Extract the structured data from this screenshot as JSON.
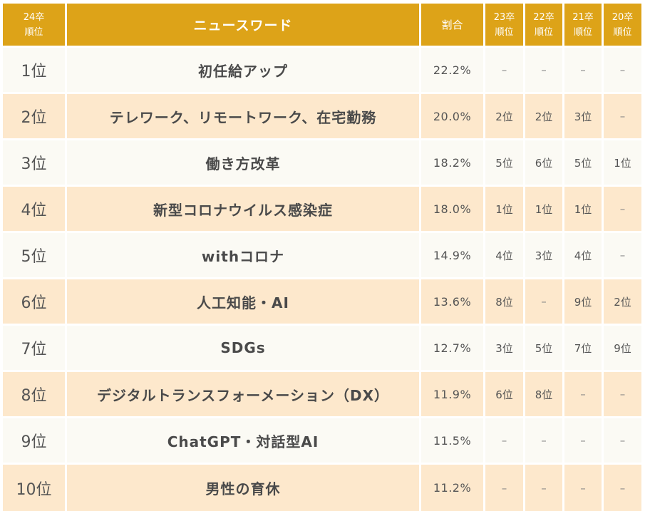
{
  "header": {
    "rank_label_line1": "24卒",
    "rank_label_line2": "順位",
    "word_label": "ニュースワード",
    "ratio_label": "割合",
    "prev_years": [
      {
        "line1": "23卒",
        "line2": "順位"
      },
      {
        "line1": "22卒",
        "line2": "順位"
      },
      {
        "line1": "21卒",
        "line2": "順位"
      },
      {
        "line1": "20卒",
        "line2": "順位"
      }
    ]
  },
  "colors": {
    "header_bg": "#dda318",
    "row_odd_bg": "#fbfaf4",
    "row_even_bg": "#fde8cc"
  },
  "rows": [
    {
      "rank": "1位",
      "word": "初任給アップ",
      "ratio": "22.2%",
      "prev": [
        "–",
        "–",
        "–",
        "–"
      ]
    },
    {
      "rank": "2位",
      "word": "テレワーク、リモートワーク、在宅勤務",
      "ratio": "20.0%",
      "prev": [
        "2位",
        "2位",
        "3位",
        "–"
      ]
    },
    {
      "rank": "3位",
      "word": "働き方改革",
      "ratio": "18.2%",
      "prev": [
        "5位",
        "6位",
        "5位",
        "1位"
      ]
    },
    {
      "rank": "4位",
      "word": "新型コロナウイルス感染症",
      "ratio": "18.0%",
      "prev": [
        "1位",
        "1位",
        "1位",
        "–"
      ]
    },
    {
      "rank": "5位",
      "word": "withコロナ",
      "ratio": "14.9%",
      "prev": [
        "4位",
        "3位",
        "4位",
        "–"
      ]
    },
    {
      "rank": "6位",
      "word": "人工知能・AI",
      "ratio": "13.6%",
      "prev": [
        "8位",
        "–",
        "9位",
        "2位"
      ]
    },
    {
      "rank": "7位",
      "word": "SDGs",
      "ratio": "12.7%",
      "prev": [
        "3位",
        "5位",
        "7位",
        "9位"
      ]
    },
    {
      "rank": "8位",
      "word": "デジタルトランスフォーメーション（DX）",
      "ratio": "11.9%",
      "prev": [
        "6位",
        "8位",
        "–",
        "–"
      ]
    },
    {
      "rank": "9位",
      "word": "ChatGPT・対話型AI",
      "ratio": "11.5%",
      "prev": [
        "–",
        "–",
        "–",
        "–"
      ]
    },
    {
      "rank": "10位",
      "word": "男性の育休",
      "ratio": "11.2%",
      "prev": [
        "–",
        "–",
        "–",
        "–"
      ]
    }
  ]
}
